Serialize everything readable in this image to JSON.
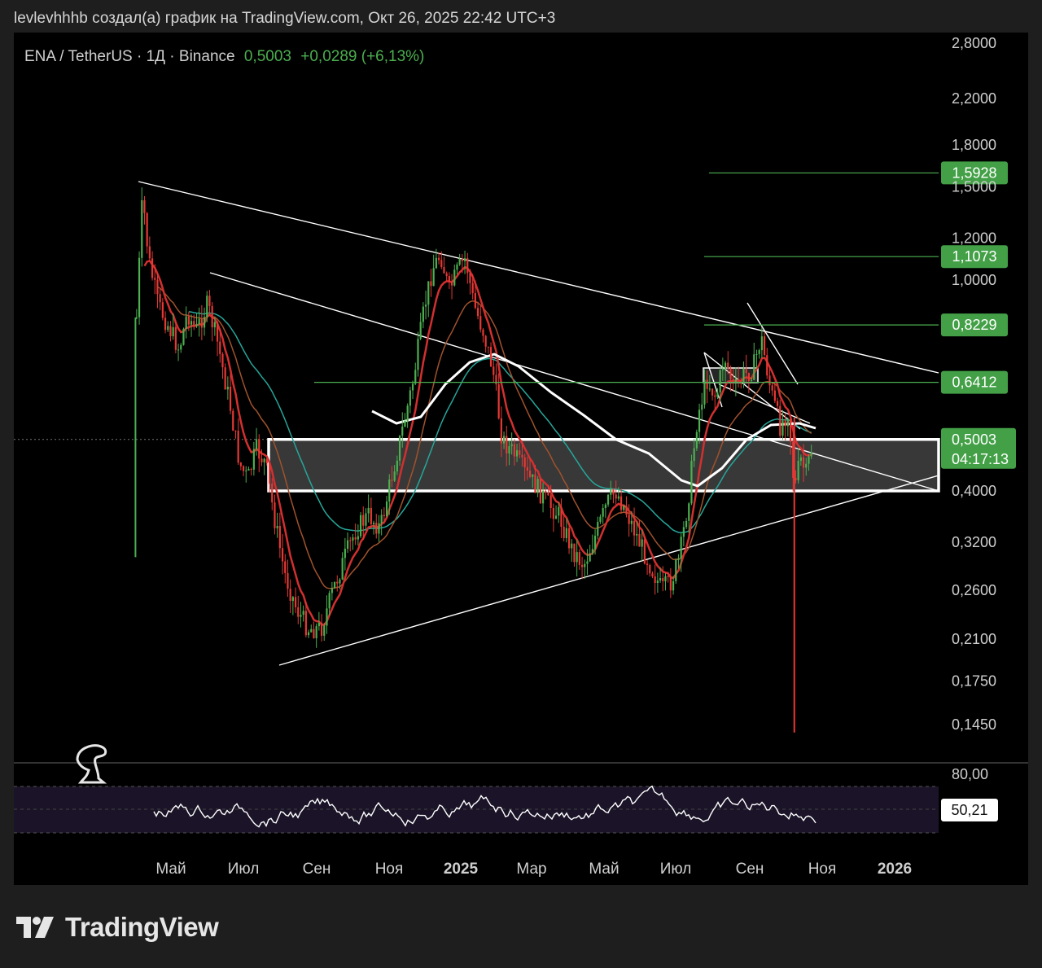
{
  "header": {
    "caption": "levlevhhhb создал(а) график на TradingView.com, Окт 26, 2025 22:42 UTC+3"
  },
  "legend": {
    "symbol": "ENA / TetherUS · 1Д · Binance",
    "last": "0,5003",
    "change": "+0,0289 (+6,13%)"
  },
  "colors": {
    "background": "#000000",
    "up": "#4caf50",
    "down": "#e53935",
    "ema_fast": "#d32f2f",
    "ema_mid": "#a0522d",
    "ema_slow": "#26a69a",
    "level_line": "#4caf50",
    "rsi_band": "#1b1428"
  },
  "footer": {
    "brand": "TradingView",
    "logo_icon": "tradingview-logo-icon"
  },
  "watermark_icon": "dinosaur-icon",
  "chart_data": {
    "type": "candlestick",
    "scale": "log",
    "y_ticks": [
      "2,8000",
      "2,2000",
      "1,8000",
      "1,5000",
      "1,2000",
      "1,0000",
      "0,4000",
      "0,3200",
      "0,2600",
      "0,2100",
      "0,1750",
      "0,1450"
    ],
    "y_tick_values": [
      2.8,
      2.2,
      1.8,
      1.5,
      1.2,
      1.0,
      0.4,
      0.32,
      0.26,
      0.21,
      0.175,
      0.145
    ],
    "x_ticks": [
      "Май",
      "Июл",
      "Сен",
      "Ноя",
      "2025",
      "Мар",
      "Май",
      "Июл",
      "Сен",
      "Ноя",
      "2026"
    ],
    "ylim": [
      0.12,
      3.0
    ],
    "levels": [
      {
        "label": "1,5928",
        "value": 1.5928
      },
      {
        "label": "1,1073",
        "value": 1.1073
      },
      {
        "label": "0,8229",
        "value": 0.8229
      },
      {
        "label": "0,6412",
        "value": 0.6412
      }
    ],
    "current": {
      "label": "0,5003",
      "countdown": "04:17:13",
      "value": 0.5003
    },
    "zone": {
      "top": 0.5003,
      "bottom": 0.4
    },
    "price_path": [
      [
        "2024-04-02",
        0.85
      ],
      [
        "2024-04-07",
        1.45
      ],
      [
        "2024-04-12",
        1.1
      ],
      [
        "2024-04-20",
        0.9
      ],
      [
        "2024-05-01",
        0.8
      ],
      [
        "2024-05-08",
        0.74
      ],
      [
        "2024-05-15",
        0.87
      ],
      [
        "2024-05-22",
        0.8
      ],
      [
        "2024-06-01",
        0.9
      ],
      [
        "2024-06-10",
        0.75
      ],
      [
        "2024-06-20",
        0.58
      ],
      [
        "2024-06-28",
        0.45
      ],
      [
        "2024-07-05",
        0.42
      ],
      [
        "2024-07-12",
        0.48
      ],
      [
        "2024-07-20",
        0.45
      ],
      [
        "2024-07-28",
        0.35
      ],
      [
        "2024-08-05",
        0.28
      ],
      [
        "2024-08-15",
        0.24
      ],
      [
        "2024-08-25",
        0.22
      ],
      [
        "2024-09-05",
        0.22
      ],
      [
        "2024-09-15",
        0.26
      ],
      [
        "2024-09-25",
        0.3
      ],
      [
        "2024-10-05",
        0.34
      ],
      [
        "2024-10-15",
        0.36
      ],
      [
        "2024-10-25",
        0.34
      ],
      [
        "2024-11-05",
        0.44
      ],
      [
        "2024-11-15",
        0.55
      ],
      [
        "2024-11-22",
        0.65
      ],
      [
        "2024-12-01",
        0.88
      ],
      [
        "2024-12-08",
        1.05
      ],
      [
        "2024-12-15",
        1.12
      ],
      [
        "2024-12-22",
        0.95
      ],
      [
        "2024-12-30",
        1.05
      ],
      [
        "2025-01-05",
        1.1
      ],
      [
        "2025-01-12",
        0.9
      ],
      [
        "2025-01-20",
        0.8
      ],
      [
        "2025-01-28",
        0.68
      ],
      [
        "2025-02-05",
        0.5
      ],
      [
        "2025-02-15",
        0.47
      ],
      [
        "2025-02-25",
        0.43
      ],
      [
        "2025-03-05",
        0.41
      ],
      [
        "2025-03-15",
        0.38
      ],
      [
        "2025-03-25",
        0.36
      ],
      [
        "2025-04-05",
        0.31
      ],
      [
        "2025-04-15",
        0.29
      ],
      [
        "2025-04-25",
        0.33
      ],
      [
        "2025-05-05",
        0.38
      ],
      [
        "2025-05-12",
        0.4
      ],
      [
        "2025-05-20",
        0.37
      ],
      [
        "2025-06-01",
        0.32
      ],
      [
        "2025-06-10",
        0.29
      ],
      [
        "2025-06-20",
        0.26
      ],
      [
        "2025-06-28",
        0.27
      ],
      [
        "2025-07-05",
        0.3
      ],
      [
        "2025-07-12",
        0.38
      ],
      [
        "2025-07-20",
        0.55
      ],
      [
        "2025-07-28",
        0.65
      ],
      [
        "2025-08-05",
        0.6
      ],
      [
        "2025-08-12",
        0.72
      ],
      [
        "2025-08-20",
        0.62
      ],
      [
        "2025-08-28",
        0.66
      ],
      [
        "2025-09-05",
        0.68
      ],
      [
        "2025-09-12",
        0.78
      ],
      [
        "2025-09-20",
        0.62
      ],
      [
        "2025-09-28",
        0.53
      ],
      [
        "2025-10-05",
        0.57
      ],
      [
        "2025-10-10",
        0.4
      ],
      [
        "2025-10-15",
        0.46
      ],
      [
        "2025-10-20",
        0.43
      ],
      [
        "2025-10-26",
        0.5
      ]
    ],
    "wicks": [
      [
        "2024-04-01",
        0.3,
        0.85
      ],
      [
        "2025-10-10",
        0.14,
        0.55
      ]
    ],
    "rsi": {
      "value": "50,21",
      "upper_label": "80,00",
      "upper": 70,
      "lower": 30
    }
  }
}
